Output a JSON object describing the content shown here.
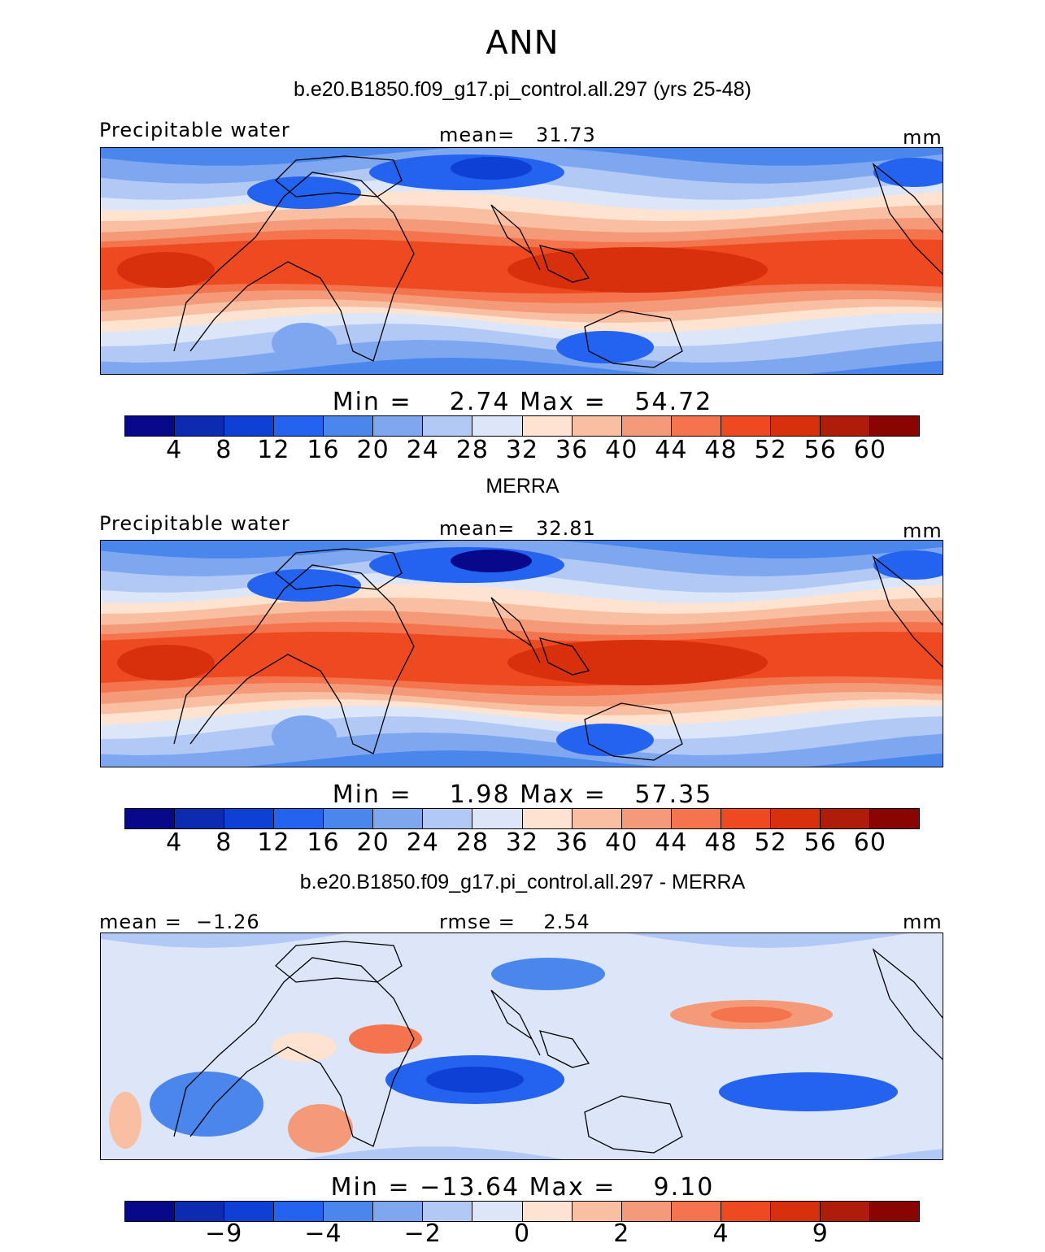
{
  "title": "ANN",
  "panels": [
    {
      "title": "b.e20.B1850.f09_g17.pi_control.all.297 (yrs 25-48)",
      "left_label": "Precipitable water",
      "center_label": "mean=   31.73",
      "right_label": "mm",
      "minmax": "Min =    2.74 Max =   54.72",
      "kind": "abs",
      "ticks": [
        "4",
        "8",
        "12",
        "16",
        "20",
        "24",
        "28",
        "32",
        "36",
        "40",
        "44",
        "48",
        "52",
        "56",
        "60"
      ]
    },
    {
      "title": "MERRA",
      "left_label": "Precipitable water",
      "center_label": "mean=   32.81",
      "right_label": "mm",
      "minmax": "Min =    1.98 Max =   57.35",
      "kind": "abs",
      "ticks": [
        "4",
        "8",
        "12",
        "16",
        "20",
        "24",
        "28",
        "32",
        "36",
        "40",
        "44",
        "48",
        "52",
        "56",
        "60"
      ]
    },
    {
      "title": "b.e20.B1850.f09_g17.pi_control.all.297 - MERRA",
      "left_label": "mean =  −1.26",
      "center_label": "rmse =    2.54",
      "right_label": "mm",
      "minmax": "Min = −13.64 Max =    9.10",
      "kind": "diff",
      "ticks": [
        "−9",
        "−4",
        "−2",
        "0",
        "2",
        "4",
        "9"
      ]
    }
  ],
  "colors": {
    "palette": [
      "#08098a",
      "#0d2bb0",
      "#0f40d6",
      "#2463ef",
      "#4a86ec",
      "#7ea7f0",
      "#b3c9f5",
      "#dde6f8",
      "#fde3d0",
      "#f9bfa2",
      "#f59a78",
      "#f3744d",
      "#ee4a22",
      "#d8300c",
      "#b01c0a",
      "#880502"
    ]
  }
}
